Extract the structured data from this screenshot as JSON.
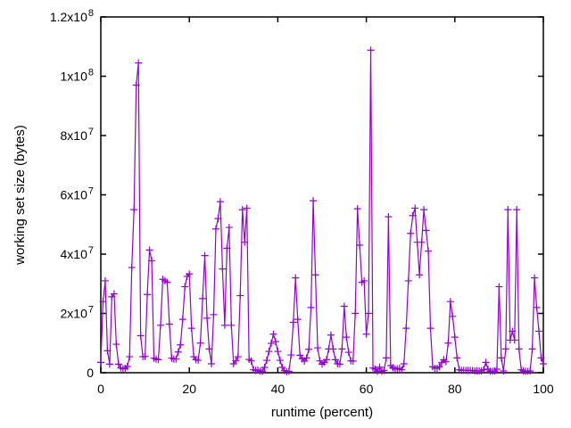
{
  "chart_data": {
    "type": "line",
    "title": "",
    "xlabel": "runtime (percent)",
    "ylabel": "working set size (bytes)",
    "xlim": [
      0,
      100
    ],
    "ylim": [
      0,
      120000000
    ],
    "grid": false,
    "legend": "none",
    "marker": "plus",
    "line_color": "#9400d3",
    "frame_color": "#000000",
    "background_color": "#ffffff",
    "x_start": 0,
    "x_step": 0.5,
    "x_ticks": [
      {
        "v": 0,
        "label": "0"
      },
      {
        "v": 20,
        "label": "20"
      },
      {
        "v": 40,
        "label": "40"
      },
      {
        "v": 60,
        "label": "60"
      },
      {
        "v": 80,
        "label": "80"
      },
      {
        "v": 100,
        "label": "100"
      }
    ],
    "y_ticks_millions": [
      {
        "v": 0,
        "mantissa": "0",
        "exponent": ""
      },
      {
        "v": 20,
        "mantissa": "2x10",
        "exponent": "7"
      },
      {
        "v": 40,
        "mantissa": "4x10",
        "exponent": "7"
      },
      {
        "v": 60,
        "mantissa": "6x10",
        "exponent": "7"
      },
      {
        "v": 80,
        "mantissa": "8x10",
        "exponent": "7"
      },
      {
        "v": 100,
        "mantissa": "1x10",
        "exponent": "8"
      },
      {
        "v": 120,
        "mantissa": "1.2x10",
        "exponent": "8"
      }
    ],
    "values_millions": [
      3.5,
      24,
      31,
      7.4,
      2.9,
      25.6,
      26.6,
      9.6,
      2.9,
      1.6,
      1.3,
      1.5,
      2.1,
      5.4,
      35.5,
      55,
      97,
      104.5,
      12.5,
      5.4,
      5.5,
      26.4,
      41.4,
      37.8,
      4.9,
      4.6,
      4.4,
      16,
      31.5,
      31,
      30.5,
      16.4,
      4.9,
      4.6,
      4.6,
      7,
      9.4,
      18,
      29,
      32.5,
      33.3,
      15,
      5.4,
      4.4,
      4.2,
      10,
      25,
      39.5,
      18.4,
      8,
      3,
      19.6,
      48.5,
      52,
      57.7,
      35,
      16,
      42,
      49,
      16,
      3,
      4,
      5.4,
      26,
      55,
      44,
      55.5,
      4.5,
      4,
      1,
      0.8,
      0.9,
      0.5,
      0.4,
      1.8,
      4.2,
      7.2,
      9.9,
      13,
      10.5,
      7.2,
      4.2,
      1.8,
      0.7,
      0.3,
      0.5,
      6,
      17,
      32,
      18,
      5.9,
      4.7,
      3.9,
      5,
      7.9,
      22,
      58,
      33,
      8.4,
      4,
      2.9,
      3.5,
      4.4,
      8,
      12.7,
      8,
      4.4,
      3,
      2.9,
      8,
      22.4,
      12,
      6.9,
      4,
      3.9,
      20,
      55.3,
      43,
      30.5,
      31,
      13,
      20,
      108.8,
      1.6,
      1.2,
      0.5,
      1.9,
      0.5,
      0.8,
      5,
      52.6,
      2.4,
      1.7,
      1.2,
      1.3,
      1.5,
      1,
      3,
      15,
      31,
      47,
      53,
      55.5,
      44,
      33,
      44,
      55,
      48,
      41,
      15,
      2,
      1.5,
      1.5,
      2,
      3.4,
      4.4,
      3.7,
      10,
      24,
      19,
      12,
      5,
      1,
      0.8,
      0.8,
      0.8,
      0.8,
      0.8,
      0.8,
      0.6,
      0.6,
      0.6,
      0.6,
      1,
      3.5,
      1.2,
      0.5,
      0.5,
      0.6,
      1.2,
      29,
      5,
      0.6,
      8,
      55,
      11,
      14,
      11,
      55,
      8,
      1,
      0.6,
      0.5,
      0.5,
      0.6,
      8,
      32,
      22,
      14,
      5,
      3
    ]
  }
}
